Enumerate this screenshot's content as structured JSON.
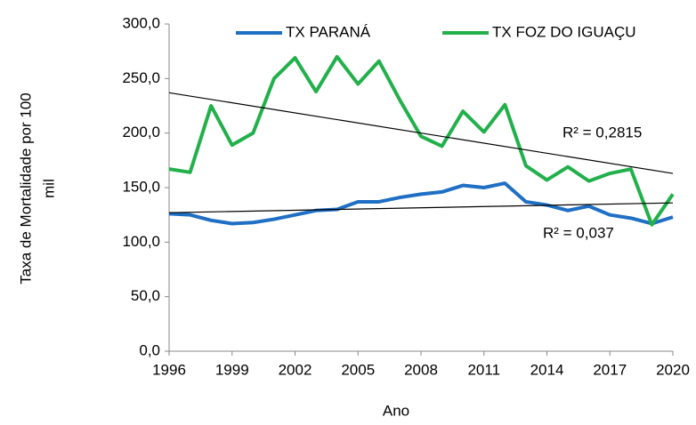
{
  "chart_data": {
    "type": "line",
    "xlabel": "Ano",
    "ylabel": [
      "Taxa de Mortalidade por 100",
      "mil"
    ],
    "x": [
      1996,
      1997,
      1998,
      1999,
      2000,
      2001,
      2002,
      2003,
      2004,
      2005,
      2006,
      2007,
      2008,
      2009,
      2010,
      2011,
      2012,
      2013,
      2014,
      2015,
      2016,
      2017,
      2018,
      2019,
      2020
    ],
    "series": [
      {
        "name": "TX PARANÁ",
        "color": "#1f6fc5",
        "values": [
          126,
          125,
          120,
          117,
          118,
          121,
          125,
          129,
          130,
          137,
          137,
          141,
          144,
          146,
          152,
          150,
          154,
          137,
          134,
          129,
          133,
          125,
          122,
          117,
          123
        ]
      },
      {
        "name": "TX FOZ DO IGUAÇU",
        "color": "#22b04b",
        "values": [
          167,
          164,
          225,
          189,
          200,
          250,
          269,
          238,
          270,
          245,
          266,
          230,
          197,
          188,
          220,
          201,
          226,
          170,
          157,
          169,
          156,
          163,
          167,
          116,
          144
        ]
      }
    ],
    "trendlines": [
      {
        "x": [
          1996,
          2020
        ],
        "values": [
          237,
          163
        ],
        "color": "#000000",
        "label": "R² = 0,2815"
      },
      {
        "x": [
          1996,
          2020
        ],
        "values": [
          127,
          136
        ],
        "color": "#000000",
        "label": "R² = 0,037"
      }
    ],
    "xlim": [
      1996,
      2020
    ],
    "xticks": [
      1996,
      1999,
      2002,
      2005,
      2008,
      2011,
      2014,
      2017,
      2020
    ],
    "ylim": [
      0,
      300
    ],
    "yticks": [
      {
        "value": 0,
        "label": "0,0"
      },
      {
        "value": 50,
        "label": "50,0"
      },
      {
        "value": 100,
        "label": "100,0"
      },
      {
        "value": 150,
        "label": "150,0"
      },
      {
        "value": 200,
        "label": "200,0"
      },
      {
        "value": 250,
        "label": "250,0"
      },
      {
        "value": 300,
        "label": "300,0"
      }
    ],
    "legend": "top"
  }
}
